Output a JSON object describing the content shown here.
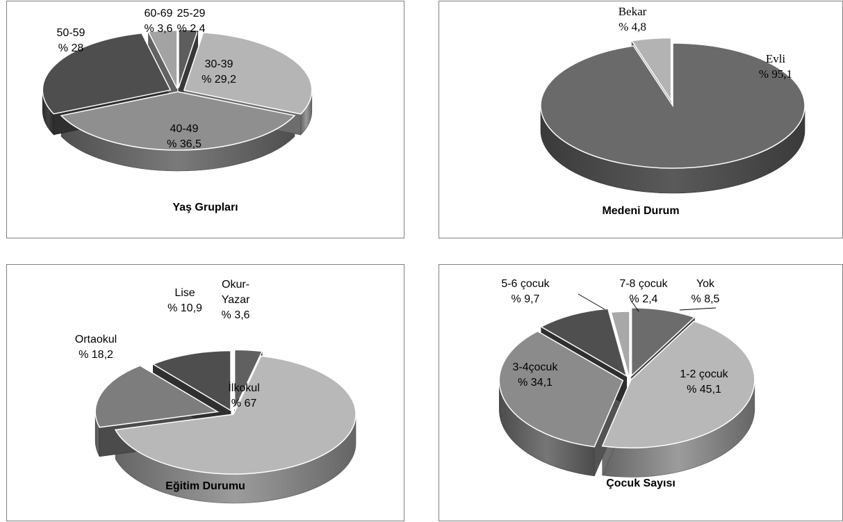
{
  "chart_data": [
    {
      "type": "pie",
      "title": "Yaş Grupları",
      "slices": [
        {
          "label": "25-29",
          "value_text": "% 2,4",
          "value": 2.4,
          "color": "#5d5d5d"
        },
        {
          "label": "30-39",
          "value_text": "% 29,2",
          "value": 29.2,
          "color": "#b5b5b5"
        },
        {
          "label": "40-49",
          "value_text": "% 36,5",
          "value": 36.5,
          "color": "#8f8f8f"
        },
        {
          "label": "50-59",
          "value_text": "% 28",
          "value": 28,
          "color": "#4e4e4e"
        },
        {
          "label": "60-69",
          "value_text": "% 3,6",
          "value": 3.6,
          "color": "#a3a3a3"
        }
      ]
    },
    {
      "type": "pie",
      "title": "Medeni Durum",
      "slices": [
        {
          "label": "Evli",
          "value_text": "% 95,1",
          "value": 95.1,
          "color": "#6a6a6a"
        },
        {
          "label": "Bekar",
          "value_text": "% 4,8",
          "value": 4.8,
          "color": "#b3b3b3"
        }
      ]
    },
    {
      "type": "pie",
      "title": "Eğitim Durumu",
      "slices": [
        {
          "label": "Okur-\nYazar",
          "value_text": "% 3,6",
          "value": 3.6,
          "color": "#606060"
        },
        {
          "label": "İlkokul",
          "value_text": "% 67",
          "value": 67,
          "color": "#b8b8b8"
        },
        {
          "label": "Ortaokul",
          "value_text": "% 18,2",
          "value": 18.2,
          "color": "#7d7d7d"
        },
        {
          "label": "Lise",
          "value_text": "% 10,9",
          "value": 10.9,
          "color": "#4e4e4e"
        }
      ]
    },
    {
      "type": "pie",
      "title": "Çocuk  Sayısı",
      "slices": [
        {
          "label": "Yok",
          "value_text": "% 8,5",
          "value": 8.5,
          "color": "#6c6c6c"
        },
        {
          "label": "1-2 çocuk",
          "value_text": "% 45,1",
          "value": 45.1,
          "color": "#b8b8b8"
        },
        {
          "label": "3-4çocuk",
          "value_text": "% 34,1",
          "value": 34.1,
          "color": "#8b8b8b"
        },
        {
          "label": "5-6 çocuk",
          "value_text": "% 9,7",
          "value": 9.7,
          "color": "#4f4f4f"
        },
        {
          "label": "7-8 çocuk",
          "value_text": "% 2,4",
          "value": 2.4,
          "color": "#a8a8a8"
        }
      ]
    }
  ]
}
